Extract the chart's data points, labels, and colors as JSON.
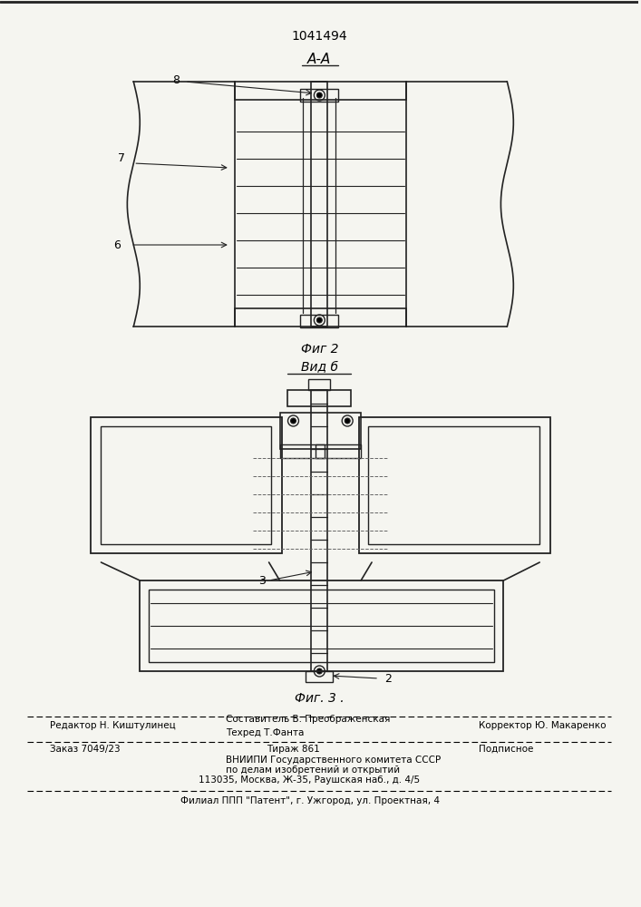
{
  "patent_number": "1041494",
  "section_label": "A-A",
  "fig2_label": "Фиг 2",
  "fig3_label": "Фиг. 3 .",
  "view_b_label": "Вид б",
  "label_8": "8",
  "label_7": "7",
  "label_6": "6",
  "label_3": "3",
  "label_2": "2",
  "footer_line1_left": "Редактор Н. Киштулинец",
  "footer_line1_center": "Составитель В. Преображенская",
  "footer_line1_right": "Корректор Ю. Макаренко",
  "footer_line2_left": "Техред Т.Фанта",
  "footer_line3_left": "Заказ 7049/23",
  "footer_line3_center": "Тираж 861",
  "footer_line3_right": "Подписное",
  "footer_line4": "ВНИИПИ Государственного комитета СССР",
  "footer_line5": "по делам изобретений и открытий",
  "footer_line6": "113035, Москва, Ж-35, Раушская наб., д. 4/5",
  "footer_last": "Филиал ППП \"Патент\", г. Ужгород, ул. Проектная, 4",
  "bg_color": "#f5f5f0",
  "line_color": "#222222",
  "fig_color": "#333333"
}
